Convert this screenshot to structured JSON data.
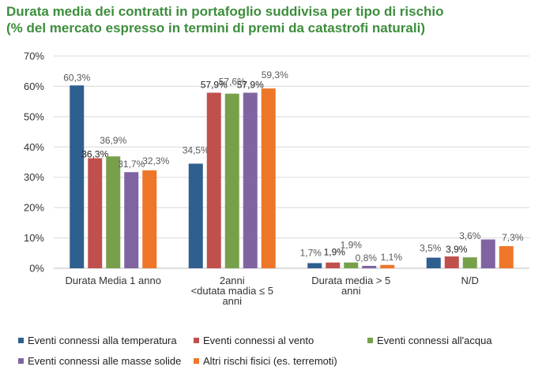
{
  "chart_data": {
    "type": "bar",
    "title_lines": [
      "Durata media dei contratti in portafoglio suddivisa per tipo di rischio",
      "(% del mercato espresso in termini di premi da catastrofi naturali)"
    ],
    "categories": [
      [
        "Durata Media 1 anno"
      ],
      [
        "2anni",
        "<dutata madia ≤ 5",
        "anni"
      ],
      [
        "Durata media  > 5",
        "anni"
      ],
      [
        "N/D"
      ]
    ],
    "y_ticks": [
      "0%",
      "10%",
      "20%",
      "30%",
      "40%",
      "50%",
      "60%",
      "70%"
    ],
    "ylim": [
      0,
      70
    ],
    "grid": true,
    "legend_position": "bottom",
    "series": [
      {
        "name": "Eventi connessi alla temperatura",
        "color": "#2f5f8f",
        "values": [
          60.3,
          34.5,
          1.7,
          3.5
        ],
        "labels": [
          "60,3%",
          "34,5%",
          "1,7%",
          "3,5%"
        ]
      },
      {
        "name": "Eventi connessi al vento",
        "color": "#c0504d",
        "values": [
          36.3,
          57.9,
          1.9,
          3.9
        ],
        "labels": [
          "36,3%",
          "57,9%",
          "1,9%",
          "3,9%"
        ]
      },
      {
        "name": "Eventi connessi all'acqua",
        "color": "#77a04a",
        "values": [
          36.9,
          57.6,
          1.9,
          3.6
        ],
        "labels": [
          "36,9%",
          "57,6%",
          "1,9%",
          "3,6%"
        ]
      },
      {
        "name": "Eventi connessi alle masse solide",
        "color": "#8064a2",
        "values": [
          31.7,
          57.9,
          0.8,
          9.5
        ],
        "labels": [
          "31,7%",
          "57,9%",
          "0,8%",
          ""
        ]
      },
      {
        "name": "Altri rischi fisici (es. terremoti)",
        "color": "#ee7629",
        "values": [
          32.3,
          59.3,
          1.1,
          7.3
        ],
        "labels": [
          "32,3%",
          "59,3%",
          "1,1%",
          "7,3%"
        ]
      }
    ]
  }
}
